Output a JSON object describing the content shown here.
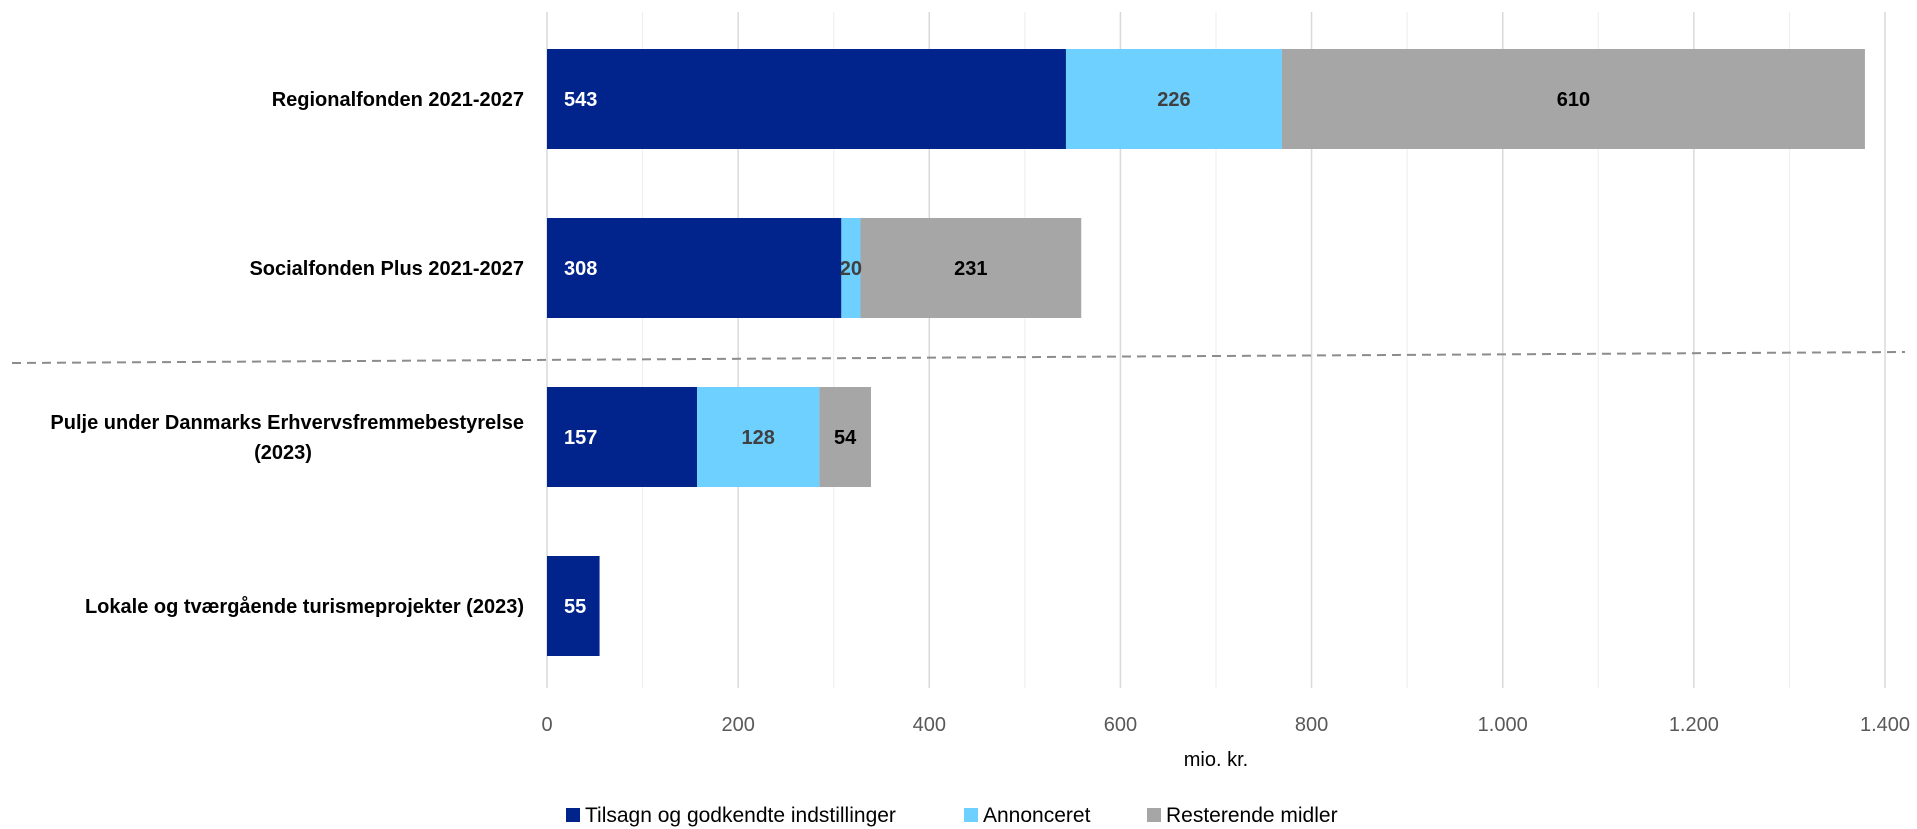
{
  "chart_data": {
    "type": "bar",
    "orientation": "horizontal",
    "stacked": true,
    "categories": [
      [
        "Regionalfonden 2021-2027"
      ],
      [
        "Socialfonden Plus 2021-2027"
      ],
      [
        "Pulje under Danmarks Erhvervsfremmebestyrelse",
        "(2023)"
      ],
      [
        "Lokale og tværgående turismeprojekter (2023)"
      ]
    ],
    "series": [
      {
        "name": "Tilsagn og godkendte indstillinger",
        "color": "#00238C",
        "label_color": "#ffffff",
        "values": [
          543,
          308,
          157,
          55
        ]
      },
      {
        "name": "Annonceret",
        "color": "#6DD0FF",
        "label_color": "#404040",
        "values": [
          226,
          20,
          128,
          null
        ]
      },
      {
        "name": "Resterende midler",
        "color": "#A6A6A6",
        "label_color": "#000000",
        "values": [
          610,
          231,
          54,
          null
        ]
      }
    ],
    "xlabel": "mio. kr.",
    "ylabel": "",
    "xlim": [
      0,
      1400
    ],
    "xticks": [
      0,
      200,
      400,
      600,
      800,
      1000,
      1200,
      1400
    ],
    "xtick_labels": [
      "0",
      "200",
      "400",
      "600",
      "800",
      "1.000",
      "1.200",
      "1.400"
    ],
    "grid": true,
    "legend_position": "bottom",
    "separator": "dashed line between the second and third categories"
  }
}
